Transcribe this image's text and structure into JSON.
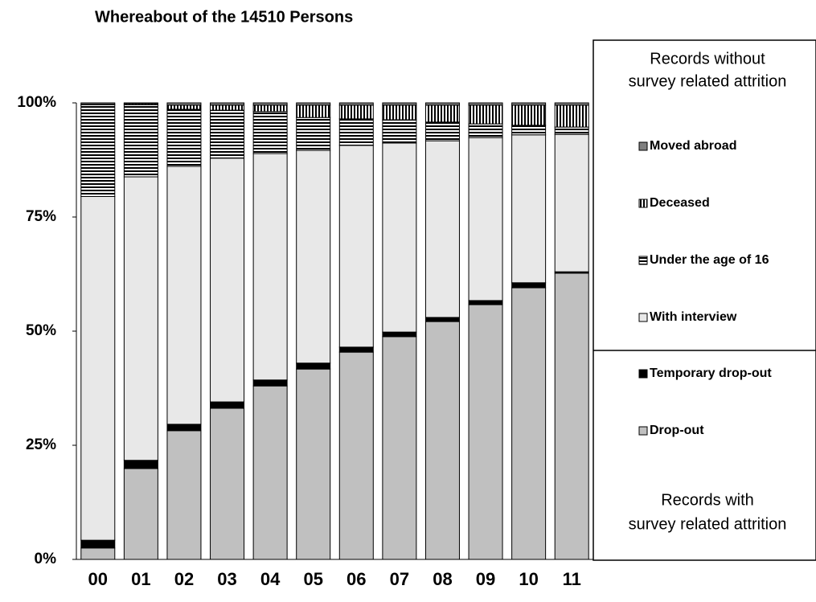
{
  "chart_data": {
    "type": "stacked_bar",
    "title": "Whereabout of the 14510 Persons",
    "categories": [
      "00",
      "01",
      "02",
      "03",
      "04",
      "05",
      "06",
      "07",
      "08",
      "09",
      "10",
      "11"
    ],
    "series": [
      {
        "name": "Drop-out",
        "color": "#c0c0c0",
        "pattern": "solid",
        "values": [
          2.5,
          19.9,
          28.2,
          33.1,
          38.0,
          41.7,
          45.4,
          48.8,
          52.1,
          55.8,
          59.5,
          62.7
        ]
      },
      {
        "name": "Temporary drop-out",
        "color": "#000000",
        "pattern": "solid",
        "values": [
          1.7,
          1.8,
          1.4,
          1.4,
          1.3,
          1.3,
          1.1,
          1.0,
          0.9,
          0.9,
          1.1,
          0.3
        ]
      },
      {
        "name": "With interview",
        "color": "#e8e8e8",
        "pattern": "solid",
        "values": [
          75.3,
          62.1,
          56.5,
          53.4,
          49.6,
          46.6,
          44.2,
          41.4,
          38.7,
          35.7,
          32.4,
          30.1
        ]
      },
      {
        "name": "Under the age of 16",
        "color": "#000000",
        "pattern": "horizontal-stripes",
        "values": [
          20.1,
          15.8,
          12.5,
          10.5,
          9.2,
          7.2,
          5.8,
          5.1,
          4.1,
          3.0,
          2.1,
          1.6
        ]
      },
      {
        "name": "Deceased",
        "color": "#000000",
        "pattern": "vertical-stripes",
        "values": [
          0.1,
          0.2,
          0.9,
          1.1,
          1.4,
          2.7,
          3.0,
          3.2,
          3.7,
          4.1,
          4.4,
          4.8
        ]
      },
      {
        "name": "Moved abroad",
        "color": "#808080",
        "pattern": "solid",
        "values": [
          0.3,
          0.2,
          0.5,
          0.5,
          0.5,
          0.5,
          0.5,
          0.5,
          0.5,
          0.5,
          0.5,
          0.5
        ]
      }
    ],
    "ylim": [
      0,
      100
    ],
    "yticks": [
      {
        "value": 0,
        "label": "0%"
      },
      {
        "value": 25,
        "label": "25%"
      },
      {
        "value": 50,
        "label": "50%"
      },
      {
        "value": 75,
        "label": "75%"
      },
      {
        "value": 100,
        "label": "100%"
      }
    ],
    "legend_position": "right",
    "legend_header_top": [
      "Records without",
      "survey related attrition"
    ],
    "legend_header_bottom": [
      "Records with",
      "survey related attrition"
    ]
  }
}
